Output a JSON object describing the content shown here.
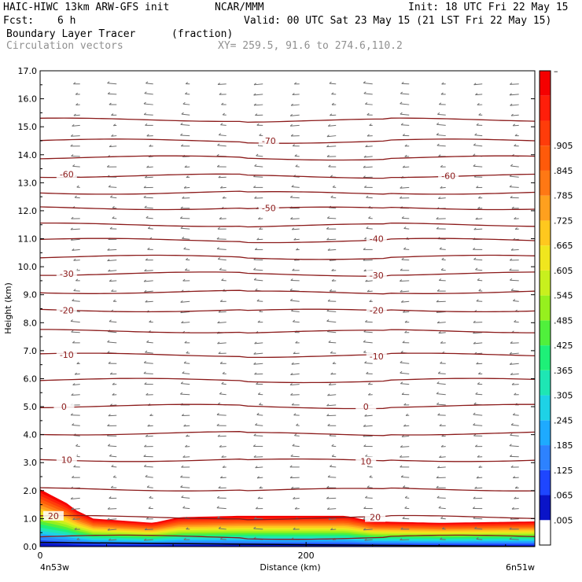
{
  "header": {
    "model": "HAIC-HIWC 13km ARW-GFS init",
    "org": "NCAR/MMM",
    "init": "Init: 18 UTC Fri 22 May 15",
    "fcst_label": "Fcst:",
    "fcst_value": "6 h",
    "valid": "Valid: 00 UTC Sat 23 May 15 (21 LST Fri 22 May 15)",
    "field": "Boundary Layer Tracer",
    "units": "(fraction)",
    "vectors": "Circulation vectors",
    "xy": "XY= 259.5, 91.6 to 274.6,110.2"
  },
  "colors": {
    "contour": "#8b1a1a",
    "vector": "#6e6e6e",
    "palette": [
      "#ffffff",
      "#0a14c8",
      "#1e46ff",
      "#2d82ff",
      "#1eaaff",
      "#1ed2e6",
      "#1ee6b4",
      "#1ef078",
      "#50f03c",
      "#96f01e",
      "#c8f01e",
      "#f0e61e",
      "#ffc81e",
      "#ffa01e",
      "#ff7814",
      "#ff5a0a",
      "#ff3c0a",
      "#ff1e0a",
      "#f50000"
    ]
  },
  "chart_data": {
    "type": "cross-section",
    "title": "Boundary Layer Tracer",
    "xlabel": "Distance (km)",
    "ylabel": "Height (km)",
    "xlim": [
      0,
      372
    ],
    "ylim": [
      0,
      17
    ],
    "yticks": [
      "0.0",
      "1.0",
      "2.0",
      "3.0",
      "4.0",
      "5.0",
      "6.0",
      "7.0",
      "8.0",
      "9.0",
      "10.0",
      "11.0",
      "12.0",
      "13.0",
      "14.0",
      "15.0",
      "16.0",
      "17.0"
    ],
    "xticks": [
      {
        "value": 0,
        "label": "0"
      },
      {
        "value": 200,
        "label": "200"
      }
    ],
    "x_endpoints": {
      "left": "4n53w",
      "right": "6n51w"
    },
    "colorbar_labels": [
      ".005",
      ".065",
      ".125",
      ".185",
      ".245",
      ".305",
      ".365",
      ".425",
      ".485",
      ".545",
      ".605",
      ".665",
      ".725",
      ".785",
      ".845",
      ".905",
      "–"
    ],
    "contour_labels": [
      {
        "x": 10,
        "y": 1.1,
        "text": "20"
      },
      {
        "x": 252,
        "y": 1.05,
        "text": "20"
      },
      {
        "x": 20,
        "y": 3.1,
        "text": "10"
      },
      {
        "x": 245,
        "y": 3.05,
        "text": "10"
      },
      {
        "x": 18,
        "y": 5.0,
        "text": "0"
      },
      {
        "x": 245,
        "y": 5.0,
        "text": "0"
      },
      {
        "x": 20,
        "y": 6.85,
        "text": "-10"
      },
      {
        "x": 253,
        "y": 6.8,
        "text": "-10"
      },
      {
        "x": 20,
        "y": 8.45,
        "text": "-20"
      },
      {
        "x": 253,
        "y": 8.45,
        "text": "-20"
      },
      {
        "x": 20,
        "y": 9.75,
        "text": "-30"
      },
      {
        "x": 253,
        "y": 9.7,
        "text": "-30"
      },
      {
        "x": 253,
        "y": 11.0,
        "text": "-40"
      },
      {
        "x": 172,
        "y": 12.1,
        "text": "-50"
      },
      {
        "x": 20,
        "y": 13.3,
        "text": "-60"
      },
      {
        "x": 307,
        "y": 13.25,
        "text": "-60"
      },
      {
        "x": 172,
        "y": 14.5,
        "text": "-70"
      }
    ],
    "contour_levels_km": [
      0.35,
      1.05,
      2.05,
      3.1,
      4.05,
      5.02,
      5.95,
      6.85,
      7.7,
      8.45,
      9.1,
      9.75,
      10.35,
      10.95,
      11.5,
      12.1,
      12.65,
      13.25,
      13.9,
      14.5,
      15.25
    ],
    "tracer_top_km": [
      [
        0,
        2.05
      ],
      [
        20,
        1.55
      ],
      [
        27,
        1.3
      ],
      [
        40,
        1.0
      ],
      [
        85,
        0.85
      ],
      [
        105,
        1.05
      ],
      [
        150,
        1.1
      ],
      [
        230,
        1.1
      ],
      [
        250,
        0.9
      ],
      [
        300,
        0.85
      ],
      [
        372,
        0.9
      ]
    ]
  }
}
